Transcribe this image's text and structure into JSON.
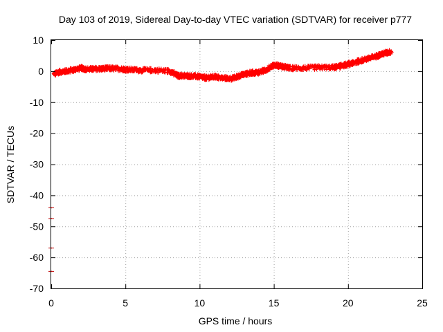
{
  "chart_data": {
    "type": "scatter",
    "title": "Day 103 of 2019, Sidereal Day-to-day VTEC variation (SDTVAR) for receiver p777",
    "xlabel": "GPS time / hours",
    "ylabel": "SDTVAR / TECUs",
    "xlim": [
      0,
      25
    ],
    "ylim": [
      -70,
      10
    ],
    "xticks": [
      0,
      5,
      10,
      15,
      20,
      25
    ],
    "yticks": [
      -70,
      -60,
      -50,
      -40,
      -30,
      -20,
      -10,
      0,
      10
    ],
    "grid": true,
    "legend": "none",
    "marker": "plus",
    "color": "#ff0000",
    "outlier_color": "#c00000",
    "outliers": [
      {
        "x": 0.0,
        "y": -44.0
      },
      {
        "x": 0.0,
        "y": -47.5
      },
      {
        "x": 0.0,
        "y": -57.0
      },
      {
        "x": 0.0,
        "y": -64.5
      }
    ],
    "trace": [
      {
        "x": 0.2,
        "y": -1.0
      },
      {
        "x": 0.5,
        "y": -0.3
      },
      {
        "x": 1.0,
        "y": 0.0
      },
      {
        "x": 1.5,
        "y": 0.4
      },
      {
        "x": 2.0,
        "y": 1.0
      },
      {
        "x": 2.4,
        "y": 0.6
      },
      {
        "x": 3.0,
        "y": 0.7
      },
      {
        "x": 3.5,
        "y": 0.8
      },
      {
        "x": 4.0,
        "y": 0.9
      },
      {
        "x": 4.7,
        "y": 0.7
      },
      {
        "x": 5.2,
        "y": 0.5
      },
      {
        "x": 6.0,
        "y": 0.3
      },
      {
        "x": 7.0,
        "y": 0.3
      },
      {
        "x": 8.0,
        "y": 0.0
      },
      {
        "x": 8.5,
        "y": -1.5
      },
      {
        "x": 9.0,
        "y": -1.5
      },
      {
        "x": 9.5,
        "y": -1.6
      },
      {
        "x": 10.0,
        "y": -1.8
      },
      {
        "x": 10.5,
        "y": -2.2
      },
      {
        "x": 11.0,
        "y": -1.8
      },
      {
        "x": 11.5,
        "y": -2.2
      },
      {
        "x": 12.2,
        "y": -2.4
      },
      {
        "x": 12.6,
        "y": -1.6
      },
      {
        "x": 13.0,
        "y": -1.0
      },
      {
        "x": 13.5,
        "y": -0.5
      },
      {
        "x": 14.0,
        "y": -0.4
      },
      {
        "x": 14.5,
        "y": 0.5
      },
      {
        "x": 15.0,
        "y": 2.0
      },
      {
        "x": 15.5,
        "y": 1.6
      },
      {
        "x": 16.0,
        "y": 1.0
      },
      {
        "x": 17.0,
        "y": 1.0
      },
      {
        "x": 18.0,
        "y": 1.2
      },
      {
        "x": 19.0,
        "y": 1.2
      },
      {
        "x": 19.5,
        "y": 1.6
      },
      {
        "x": 20.0,
        "y": 2.2
      },
      {
        "x": 20.5,
        "y": 2.8
      },
      {
        "x": 21.0,
        "y": 3.6
      },
      {
        "x": 21.5,
        "y": 4.2
      },
      {
        "x": 22.0,
        "y": 5.0
      },
      {
        "x": 22.5,
        "y": 5.8
      },
      {
        "x": 22.9,
        "y": 6.3
      }
    ]
  }
}
